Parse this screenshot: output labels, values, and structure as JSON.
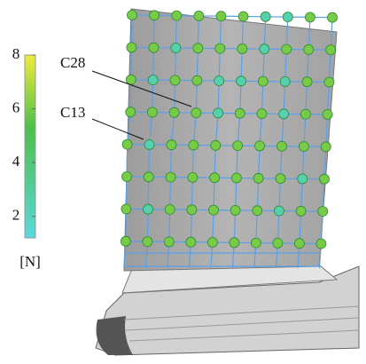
{
  "colorbar": {
    "unit": "[N]",
    "lim": [
      1.2,
      8
    ],
    "ticks": [
      2,
      4,
      6,
      8
    ]
  },
  "labels": [
    "C28",
    "C13"
  ],
  "grid": {
    "rows": [
      [
        6,
        6,
        6,
        6,
        6,
        6,
        2.5,
        2.5,
        6,
        6
      ],
      [
        6,
        6,
        2.5,
        6,
        6,
        6,
        2.5,
        6,
        6,
        6
      ],
      [
        6,
        2.5,
        6,
        6,
        2.5,
        2.5,
        6,
        2.5,
        6,
        6
      ],
      [
        6,
        6,
        6,
        6,
        2.5,
        6,
        6,
        2.5,
        6,
        6
      ],
      [
        6,
        2.5,
        6,
        6,
        6,
        6,
        6,
        6,
        6,
        6
      ],
      [
        6,
        6,
        6,
        6,
        6,
        6,
        6,
        6,
        2.5,
        6
      ],
      [
        6,
        2.5,
        6,
        6,
        6,
        6,
        6,
        2.5,
        6,
        6
      ],
      [
        6,
        6,
        6,
        6,
        6,
        6,
        6,
        6,
        6,
        6
      ]
    ]
  }
}
